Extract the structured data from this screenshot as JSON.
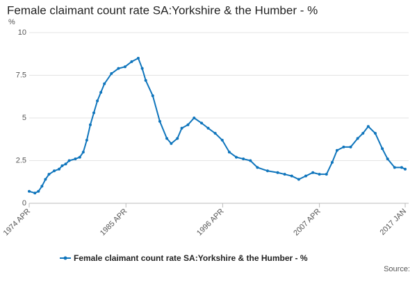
{
  "chart_data": {
    "type": "line",
    "title": "Female claimant count rate SA:Yorkshire & the Humber - %",
    "y_unit": "%",
    "source": "Source:",
    "series": [
      {
        "name": "Female claimant count rate SA:Yorkshire & the Humber - %",
        "color": "#0f75bc",
        "x": [
          1974.25,
          1974.9,
          1975.3,
          1975.7,
          1976.1,
          1976.5,
          1977.1,
          1977.65,
          1978.0,
          1978.4,
          1978.8,
          1979.5,
          1980.0,
          1980.4,
          1980.8,
          1981.2,
          1981.6,
          1982.0,
          1982.4,
          1982.8,
          1983.6,
          1984.4,
          1985.15,
          1985.9,
          1986.65,
          1987.1,
          1987.5,
          1988.3,
          1989.1,
          1989.9,
          1990.4,
          1991.1,
          1991.6,
          1992.3,
          1993.0,
          1993.85,
          1994.6,
          1995.4,
          1996.2,
          1997.0,
          1997.8,
          1998.6,
          1999.4,
          2000.2,
          2001.35,
          2002.5,
          2003.3,
          2004.1,
          2004.9,
          2005.7,
          2006.5,
          2007.25,
          2008.05,
          2008.7,
          2009.25,
          2010.0,
          2010.8,
          2011.6,
          2012.2,
          2012.8,
          2013.6,
          2014.4,
          2015.0,
          2015.8,
          2016.6,
          2017.0
        ],
        "values": [
          0.7,
          0.6,
          0.7,
          1.0,
          1.4,
          1.7,
          1.9,
          2.0,
          2.2,
          2.3,
          2.5,
          2.6,
          2.7,
          3.0,
          3.7,
          4.6,
          5.3,
          6.0,
          6.5,
          7.0,
          7.6,
          7.9,
          8.0,
          8.3,
          8.5,
          7.9,
          7.2,
          6.3,
          4.8,
          3.8,
          3.5,
          3.8,
          4.4,
          4.6,
          5.0,
          4.7,
          4.4,
          4.1,
          3.7,
          3.0,
          2.7,
          2.6,
          2.5,
          2.1,
          1.9,
          1.8,
          1.7,
          1.6,
          1.4,
          1.6,
          1.8,
          1.7,
          1.7,
          2.4,
          3.1,
          3.3,
          3.3,
          3.8,
          4.1,
          4.5,
          4.1,
          3.2,
          2.6,
          2.1,
          2.1,
          2.0
        ]
      }
    ],
    "xlim": [
      1974.25,
      2017.0
    ],
    "xticks": [
      {
        "value": 1974.25,
        "label": "1974 APR"
      },
      {
        "value": 1985.25,
        "label": "1985 APR"
      },
      {
        "value": 1996.25,
        "label": "1996 APR"
      },
      {
        "value": 2007.25,
        "label": "2007 APR"
      },
      {
        "value": 2017.0,
        "label": "2017 JAN"
      }
    ],
    "ylim": [
      0,
      10
    ],
    "yticks": [
      0,
      2.5,
      5,
      7.5,
      10
    ],
    "grid": true
  }
}
